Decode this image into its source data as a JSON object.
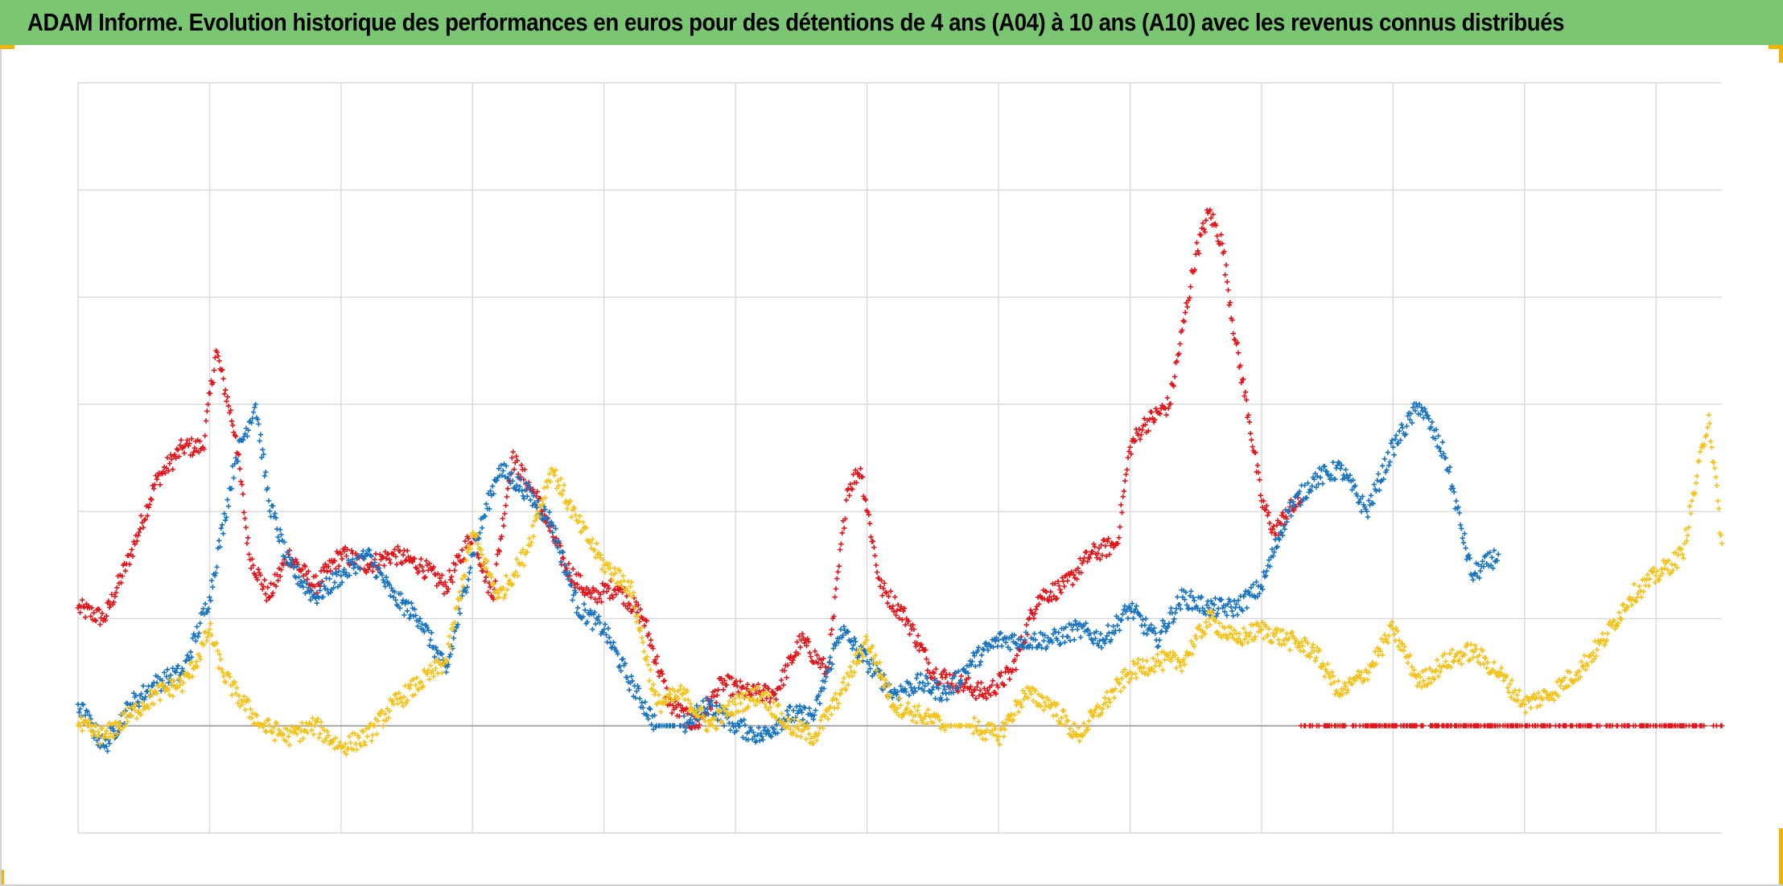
{
  "title": "ADAM Informe. Evolution historique des performances en euros pour des détentions de 4 ans (A04) à 10 ans (A10) avec les revenus connus distribués",
  "colors": {
    "title_bg": "#7ac673",
    "grid": "#d9d9d9",
    "baseline": "#a6a6a6",
    "accent": "#f0b400"
  },
  "chart_data": {
    "type": "scatter",
    "marker": "plus",
    "title": "ADAM Informe. Evolution historique des performances en euros pour des détentions de 4 ans (A04) à 10 ans (A10) avec les revenus connus distribués",
    "xlabel": "",
    "ylabel": "",
    "xlim": [
      0,
      12.5
    ],
    "ylim": [
      -1,
      6
    ],
    "grid": true,
    "legend": "none",
    "x_gridlines": [
      0,
      1,
      2,
      3,
      4,
      5,
      6,
      7,
      8,
      9,
      10,
      11,
      12
    ],
    "y_gridlines": [
      -1,
      0,
      1,
      2,
      3,
      4,
      5,
      6
    ],
    "series": [
      {
        "color": "#e3151b",
        "x": [
          0,
          0.2,
          0.4,
          0.6,
          0.8,
          0.95,
          1.05,
          1.2,
          1.3,
          1.45,
          1.6,
          1.8,
          2.0,
          2.2,
          2.4,
          2.6,
          2.8,
          3.0,
          3.15,
          3.3,
          3.5,
          3.7,
          3.9,
          4.1,
          4.3,
          4.5,
          4.7,
          4.9,
          5.1,
          5.3,
          5.5,
          5.7,
          5.85,
          5.95,
          6.1,
          6.3,
          6.5,
          6.7,
          6.9,
          7.1,
          7.3,
          7.5,
          7.7,
          7.9,
          8.0,
          8.1,
          8.3,
          8.5,
          8.6,
          8.7,
          8.8,
          8.9,
          9.0,
          9.1,
          9.2,
          9.3
        ],
        "y": [
          1.1,
          1.0,
          1.6,
          2.3,
          2.6,
          2.6,
          3.5,
          2.7,
          1.6,
          1.2,
          1.6,
          1.3,
          1.6,
          1.5,
          1.6,
          1.5,
          1.3,
          1.8,
          1.2,
          2.5,
          2.1,
          1.5,
          1.2,
          1.3,
          1.0,
          0.2,
          0.0,
          0.4,
          0.3,
          0.3,
          0.8,
          0.5,
          2.2,
          2.4,
          1.3,
          1.0,
          0.5,
          0.4,
          0.3,
          0.5,
          1.2,
          1.3,
          1.6,
          1.7,
          2.6,
          2.8,
          3.0,
          4.4,
          4.8,
          4.5,
          3.6,
          2.9,
          2.1,
          1.8,
          2.0,
          2.1
        ]
      },
      {
        "color": "#1874c0",
        "x": [
          0,
          0.2,
          0.4,
          0.6,
          0.8,
          1.0,
          1.2,
          1.35,
          1.45,
          1.6,
          1.8,
          2.0,
          2.2,
          2.4,
          2.6,
          2.8,
          3.0,
          3.2,
          3.4,
          3.6,
          3.8,
          4.0,
          4.2,
          4.4,
          4.6,
          4.8,
          5.0,
          5.2,
          5.4,
          5.6,
          5.8,
          6.0,
          6.2,
          6.4,
          6.6,
          6.8,
          7.0,
          7.2,
          7.4,
          7.6,
          7.8,
          8.0,
          8.2,
          8.4,
          8.6,
          8.8,
          9.0,
          9.2,
          9.4,
          9.6,
          9.8,
          10.0,
          10.2,
          10.4,
          10.6,
          10.8
        ],
        "y": [
          0.2,
          -0.2,
          0.2,
          0.4,
          0.5,
          1.2,
          2.5,
          3.0,
          2.1,
          1.5,
          1.2,
          1.4,
          1.6,
          1.2,
          1.0,
          0.5,
          1.6,
          2.4,
          2.2,
          1.9,
          1.1,
          0.9,
          0.4,
          0.0,
          0.0,
          0.2,
          0.0,
          -0.1,
          0.1,
          0.1,
          0.9,
          0.6,
          0.3,
          0.4,
          0.3,
          0.6,
          0.8,
          0.8,
          0.8,
          0.9,
          0.8,
          1.1,
          0.8,
          1.2,
          1.1,
          1.1,
          1.3,
          2.0,
          2.3,
          2.4,
          2.0,
          2.6,
          3.0,
          2.5,
          1.4,
          1.6
        ]
      },
      {
        "color": "#f5c219",
        "x": [
          0,
          0.2,
          0.4,
          0.6,
          0.8,
          0.9,
          1.0,
          1.1,
          1.2,
          1.4,
          1.6,
          1.8,
          2.0,
          2.2,
          2.4,
          2.6,
          2.8,
          3.0,
          3.2,
          3.4,
          3.6,
          3.8,
          4.0,
          4.2,
          4.4,
          4.6,
          4.8,
          5.0,
          5.2,
          5.4,
          5.6,
          5.8,
          6.0,
          6.2,
          6.4,
          6.6,
          6.8,
          7.0,
          7.2,
          7.4,
          7.6,
          7.8,
          8.0,
          8.2,
          8.4,
          8.6,
          8.8,
          9.0,
          9.2,
          9.4,
          9.6,
          9.8,
          10.0,
          10.2,
          10.4,
          10.6,
          10.8,
          11.0,
          11.2,
          11.4,
          11.6,
          11.8,
          12.0,
          12.2,
          12.4,
          12.5
        ],
        "y": [
          0.0,
          -0.1,
          0.1,
          0.3,
          0.4,
          0.6,
          0.9,
          0.5,
          0.3,
          0.0,
          -0.1,
          0.0,
          -0.2,
          -0.1,
          0.2,
          0.4,
          0.6,
          1.8,
          1.2,
          1.6,
          2.4,
          1.9,
          1.5,
          1.3,
          0.2,
          0.3,
          0.0,
          0.2,
          0.3,
          0.0,
          -0.1,
          0.3,
          0.8,
          0.2,
          0.1,
          0.0,
          0.0,
          -0.1,
          0.3,
          0.2,
          -0.1,
          0.2,
          0.5,
          0.6,
          0.6,
          1.0,
          0.8,
          0.9,
          0.8,
          0.7,
          0.3,
          0.5,
          0.9,
          0.4,
          0.6,
          0.7,
          0.5,
          0.2,
          0.3,
          0.5,
          0.8,
          1.2,
          1.4,
          1.6,
          2.9,
          1.7
        ]
      },
      {
        "color": "#e3151b",
        "x": [
          9.3,
          9.5,
          9.7,
          9.9,
          10.1,
          10.3,
          10.5,
          10.7,
          10.9,
          11.1,
          11.3,
          11.5,
          11.7,
          11.9,
          12.1,
          12.3,
          12.5
        ],
        "y": [
          0,
          0,
          0,
          0,
          0,
          0,
          0,
          0,
          0,
          0,
          0,
          0,
          0,
          0,
          0,
          0,
          0
        ]
      }
    ]
  }
}
